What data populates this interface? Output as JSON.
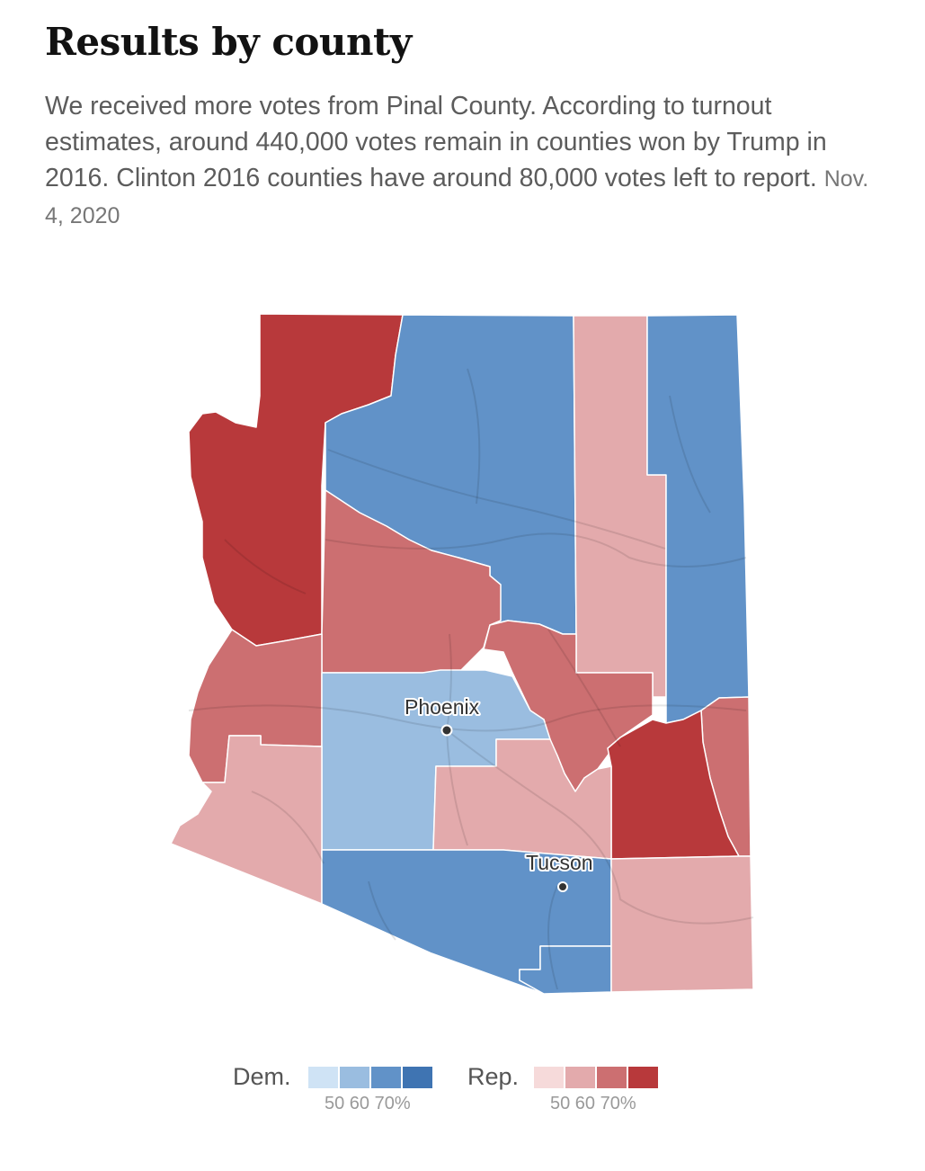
{
  "title": "Results by county",
  "description": "We received more votes from Pinal County. According to turnout estimates, around 440,000 votes remain in counties won by Trump in 2016. Clinton 2016 counties have around 80,000 votes left to report.",
  "date": "Nov. 4, 2020",
  "colors": {
    "dem": [
      "#cfe3f5",
      "#9abde0",
      "#6192c8",
      "#3f74b2"
    ],
    "rep": [
      "#f6dada",
      "#e3aaac",
      "#cc6f71",
      "#b8393b"
    ]
  },
  "map": {
    "counties": [
      {
        "id": "mohave",
        "winner": "Rep.",
        "shade": "70%"
      },
      {
        "id": "coconino",
        "winner": "Dem.",
        "shade": "60%"
      },
      {
        "id": "navajo",
        "winner": "Rep.",
        "shade": "50%"
      },
      {
        "id": "apache",
        "winner": "Dem.",
        "shade": "60%"
      },
      {
        "id": "yavapai",
        "winner": "Rep.",
        "shade": "60%"
      },
      {
        "id": "gila",
        "winner": "Rep.",
        "shade": "60%"
      },
      {
        "id": "la-paz",
        "winner": "Rep.",
        "shade": "60%"
      },
      {
        "id": "maricopa",
        "winner": "Dem.",
        "shade": "50%"
      },
      {
        "id": "greenlee",
        "winner": "Rep.",
        "shade": "60%"
      },
      {
        "id": "graham",
        "winner": "Rep.",
        "shade": "70%"
      },
      {
        "id": "yuma",
        "winner": "Rep.",
        "shade": "50%"
      },
      {
        "id": "pinal",
        "winner": "Rep.",
        "shade": "50%"
      },
      {
        "id": "pima",
        "winner": "Dem.",
        "shade": "60%"
      },
      {
        "id": "santa-cruz",
        "winner": "Dem.",
        "shade": "60%"
      },
      {
        "id": "cochise",
        "winner": "Rep.",
        "shade": "50%"
      }
    ],
    "cities": [
      {
        "name": "Phoenix"
      },
      {
        "name": "Tucson"
      }
    ]
  },
  "legend": {
    "dem_label": "Dem.",
    "rep_label": "Rep.",
    "ticks": "50 60 70%"
  }
}
